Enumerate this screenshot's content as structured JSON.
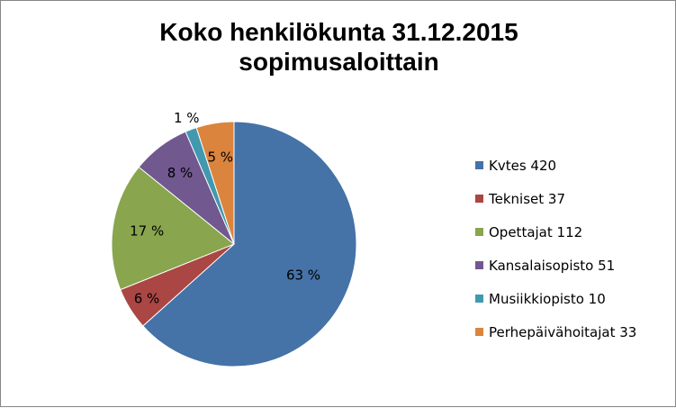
{
  "chart_data": {
    "type": "pie",
    "title_line1": "Koko henkilökunta 31.12.2015",
    "title_line2": "sopimusaloittain",
    "slices": [
      {
        "legend": "Kvtes 420",
        "value": 420,
        "label": "63 %",
        "color": "#4572A7"
      },
      {
        "legend": "Tekniset 37",
        "value": 37,
        "label": "6 %",
        "color": "#AA4643"
      },
      {
        "legend": "Opettajat 112",
        "value": 112,
        "label": "17 %",
        "color": "#89A54E"
      },
      {
        "legend": "Kansalaisopisto 51",
        "value": 51,
        "label": "8 %",
        "color": "#71588F"
      },
      {
        "legend": "Musiikkiopisto 10",
        "value": 10,
        "label": "1 %",
        "color": "#4198AF"
      },
      {
        "legend": "Perhepäivähoitajat 33",
        "value": 33,
        "label": "5 %",
        "color": "#DB843D"
      }
    ],
    "legend_position": "right"
  }
}
